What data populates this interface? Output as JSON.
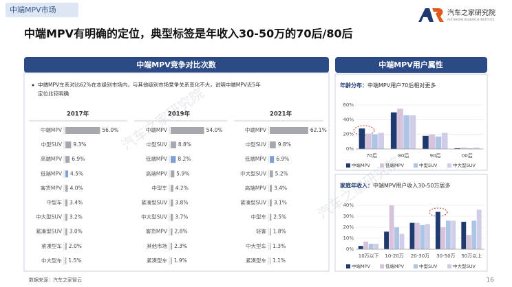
{
  "header": {
    "tab": "中端MPV市场",
    "title": "中端MPV有明确的定位，典型标签是年收入30-50万的70后/80后",
    "logo_text": "汽车之家研究院",
    "logo_subtext": "AUTOHOME RESEARCH INSTITUTE"
  },
  "left_panel": {
    "title": "中端MPV竞争对比次数",
    "note": [
      "中端MPV车系对比62%在本级别市场内，与其他级别市场竞争关系变化不大，说明中端MPV近5年",
      "定位比较明确"
    ]
  },
  "right_panel": {
    "title": "中端MPV用户属性"
  },
  "footer": {
    "source": "数据来源：汽车之家智云",
    "page": "16"
  },
  "watermark": "汽车之家研究院",
  "chart_data": [
    {
      "type": "hbar",
      "title": "2017年",
      "categories": [
        "中端MPV",
        "中型SUV",
        "高端MPV",
        "低端MPV",
        "客货MPV",
        "中型车",
        "中大型SUV",
        "紧凑型SUV",
        "紧凑型车",
        "中大型车"
      ],
      "values": [
        56.0,
        9.3,
        6.9,
        4.5,
        4.0,
        3.4,
        3.2,
        3.0,
        2.0,
        1.5
      ],
      "value_labels": [
        "56.0%",
        "9.3%",
        "6.9%",
        "4.5%",
        "4.0%",
        "3.4%",
        "3.2%",
        "3.0%",
        "2.0%",
        "1.5%"
      ],
      "colors": [
        "#a6a8ad",
        "#a6a8ad",
        "#a6a8ad",
        "#7f9fd6",
        "#a6a8ad",
        "#a6a8ad",
        "#a6a8ad",
        "#a6a8ad",
        "#a6a8ad",
        "#a6a8ad"
      ]
    },
    {
      "type": "hbar",
      "title": "2019年",
      "categories": [
        "中端MPV",
        "中型SUV",
        "低端MPV",
        "高端MPV",
        "中型车",
        "紧凑型SUV",
        "中大型SUV",
        "客货MPV",
        "其他市场",
        "紧凑型车"
      ],
      "values": [
        54.0,
        8.8,
        8.2,
        5.9,
        4.2,
        3.8,
        3.7,
        2.8,
        2.3,
        1.9
      ],
      "value_labels": [
        "54.0%",
        "8.8%",
        "8.2%",
        "5.9%",
        "4.2%",
        "3.8%",
        "3.7%",
        "2.8%",
        "2.3%",
        "1.9%"
      ],
      "colors": [
        "#a6a8ad",
        "#a6a8ad",
        "#7f9fd6",
        "#a6a8ad",
        "#a6a8ad",
        "#a6a8ad",
        "#a6a8ad",
        "#a6a8ad",
        "#a6a8ad",
        "#a6a8ad"
      ]
    },
    {
      "type": "hbar",
      "title": "2021年",
      "categories": [
        "中端MPV",
        "中型SUV",
        "低端MPV",
        "中大型SUV",
        "高端MPV",
        "紧凑型SUV",
        "中型车",
        "轻客",
        "中大型车",
        "紧凑型车"
      ],
      "values": [
        62.1,
        9.8,
        6.9,
        5.2,
        3.4,
        3.1,
        2.5,
        1.8,
        1.3,
        1.1
      ],
      "value_labels": [
        "62.1%",
        "9.8%",
        "6.9%",
        "5.2%",
        "3.4%",
        "3.1%",
        "2.5%",
        "1.8%",
        "1.3%",
        "1.1%"
      ],
      "colors": [
        "#a6a8ad",
        "#a6a8ad",
        "#7f9fd6",
        "#a6a8ad",
        "#a6a8ad",
        "#a6a8ad",
        "#a6a8ad",
        "#a6a8ad",
        "#a6a8ad",
        "#a6a8ad"
      ]
    },
    {
      "type": "bar",
      "title": "年龄分布：",
      "subtitle": "中端MPV用户70后相对更多",
      "categories": [
        "70后",
        "80后",
        "90后",
        "00后"
      ],
      "series": [
        {
          "name": "中端MPV",
          "color": "#1f3a6e",
          "values": [
            28,
            50,
            18,
            1
          ]
        },
        {
          "name": "低端MPV",
          "color": "#d8c3dc",
          "values": [
            21,
            55,
            20,
            2
          ]
        },
        {
          "name": "中型SUV",
          "color": "#aec4e4",
          "values": [
            20,
            46,
            17,
            1
          ]
        },
        {
          "name": "中大型SUV",
          "color": "#cfcde8",
          "values": [
            22,
            46,
            22,
            2
          ]
        }
      ],
      "ylim": [
        0,
        60
      ],
      "yticks": [
        {
          "value": 0,
          "label": "0%"
        },
        {
          "value": 20,
          "label": "20%"
        },
        {
          "value": 40,
          "label": "40%"
        },
        {
          "value": 60,
          "label": "60%"
        }
      ],
      "grid": true,
      "legend": "bottom"
    },
    {
      "type": "bar",
      "title": "家庭年收入：",
      "subtitle": "中端MPV用户收入30-50万居多",
      "categories": [
        "10万以下",
        "10-20万",
        "20-30万",
        "30-50万",
        "50万以上"
      ],
      "series": [
        {
          "name": "中端MPV",
          "color": "#1f3a6e",
          "values": [
            3,
            16,
            24,
            34,
            25
          ]
        },
        {
          "name": "低端MPV",
          "color": "#d8c3dc",
          "values": [
            7,
            40,
            24,
            20,
            13
          ]
        },
        {
          "name": "中型SUV",
          "color": "#aec4e4",
          "values": [
            5,
            20,
            22,
            26,
            26
          ]
        },
        {
          "name": "中大型SUV",
          "color": "#cfcde8",
          "values": [
            5,
            14,
            23,
            26,
            36
          ]
        }
      ],
      "ylim": [
        0,
        40
      ],
      "yticks": [
        {
          "value": 0,
          "label": "0%"
        },
        {
          "value": 10,
          "label": "10%"
        },
        {
          "value": 20,
          "label": "20%"
        },
        {
          "value": 30,
          "label": "30%"
        },
        {
          "value": 40,
          "label": "40%"
        }
      ],
      "grid": true,
      "legend": "bottom"
    }
  ]
}
